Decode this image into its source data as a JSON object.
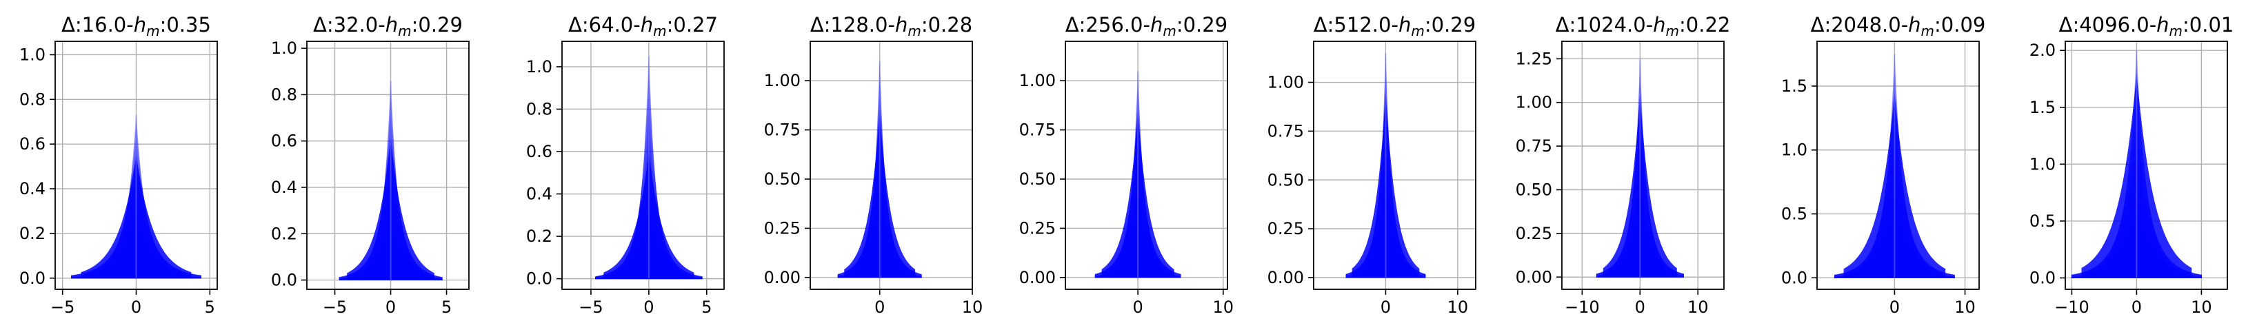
{
  "chart_data": [
    {
      "type": "area",
      "title": "Δ:16.0-hm:0.35",
      "title_prefix": "Δ:16.0-",
      "title_suffix": ":0.35",
      "xlim": [
        -5.5,
        5.5
      ],
      "ylim": [
        -0.05,
        1.06
      ],
      "xticks": [
        -5,
        0,
        5
      ],
      "xtick_labels": [
        "−5",
        "0",
        "5"
      ],
      "yticks": [
        0.0,
        0.2,
        0.4,
        0.6,
        0.8,
        1.0
      ],
      "ytick_labels": [
        "0.0",
        "0.2",
        "0.4",
        "0.6",
        "0.8",
        "1.0"
      ],
      "peak": 0.73,
      "core": 0.55,
      "low": 0.2,
      "width": 4.4,
      "grid": true
    },
    {
      "type": "area",
      "title": "Δ:32.0-hm:0.29",
      "title_prefix": "Δ:32.0-",
      "title_suffix": ":0.29",
      "xlim": [
        -7.5,
        7.0
      ],
      "ylim": [
        -0.04,
        1.03
      ],
      "xticks": [
        -5,
        0,
        5
      ],
      "xtick_labels": [
        "−5",
        "0",
        "5"
      ],
      "yticks": [
        0.0,
        0.2,
        0.4,
        0.6,
        0.8,
        1.0
      ],
      "ytick_labels": [
        "0.0",
        "0.2",
        "0.4",
        "0.6",
        "0.8",
        "1.0"
      ],
      "peak": 0.86,
      "core": 0.62,
      "low": 0.2,
      "width": 4.6,
      "grid": true
    },
    {
      "type": "area",
      "title": "Δ:64.0-hm:0.27",
      "title_prefix": "Δ:64.0-",
      "title_suffix": ":0.27",
      "xlim": [
        -7.5,
        6.5
      ],
      "ylim": [
        -0.05,
        1.12
      ],
      "xticks": [
        -5,
        0,
        5
      ],
      "xtick_labels": [
        "−5",
        "0",
        "5"
      ],
      "yticks": [
        0.0,
        0.2,
        0.4,
        0.6,
        0.8,
        1.0
      ],
      "ytick_labels": [
        "0.0",
        "0.2",
        "0.4",
        "0.6",
        "0.8",
        "1.0"
      ],
      "peak": 1.05,
      "core": 0.6,
      "low": 0.2,
      "width": 4.6,
      "grid": true
    },
    {
      "type": "area",
      "title": "Δ:128.0-hm:0.28",
      "title_prefix": "Δ:128.0-",
      "title_suffix": ":0.28",
      "xlim": [
        -7.5,
        10.0
      ],
      "ylim": [
        -0.06,
        1.2
      ],
      "xticks": [
        0,
        10
      ],
      "xtick_labels": [
        "0",
        "10"
      ],
      "yticks": [
        0.0,
        0.25,
        0.5,
        0.75,
        1.0
      ],
      "ytick_labels": [
        "0.00",
        "0.25",
        "0.50",
        "0.75",
        "1.00"
      ],
      "peak": 1.1,
      "core": 0.85,
      "low": 0.3,
      "width": 4.5,
      "grid": true
    },
    {
      "type": "area",
      "title": "Δ:256.0-hm:0.29",
      "title_prefix": "Δ:256.0-",
      "title_suffix": ":0.29",
      "xlim": [
        -8.5,
        10.5
      ],
      "ylim": [
        -0.06,
        1.2
      ],
      "xticks": [
        0,
        10
      ],
      "xtick_labels": [
        "0",
        "10"
      ],
      "yticks": [
        0.0,
        0.25,
        0.5,
        0.75,
        1.0
      ],
      "ytick_labels": [
        "0.00",
        "0.25",
        "0.50",
        "0.75",
        "1.00"
      ],
      "peak": 1.05,
      "core": 0.85,
      "low": 0.3,
      "width": 5.0,
      "grid": true
    },
    {
      "type": "area",
      "title": "Δ:512.0-hm:0.29",
      "title_prefix": "Δ:512.0-",
      "title_suffix": ":0.29",
      "xlim": [
        -10.0,
        12.5
      ],
      "ylim": [
        -0.06,
        1.21
      ],
      "xticks": [
        0,
        10
      ],
      "xtick_labels": [
        "0",
        "10"
      ],
      "yticks": [
        0.0,
        0.25,
        0.5,
        0.75,
        1.0
      ],
      "ytick_labels": [
        "0.00",
        "0.25",
        "0.50",
        "0.75",
        "1.00"
      ],
      "peak": 1.15,
      "core": 0.95,
      "low": 0.3,
      "width": 5.5,
      "grid": true
    },
    {
      "type": "area",
      "title": "Δ:1024.0-hm:0.22",
      "title_prefix": "Δ:1024.0-",
      "title_suffix": ":0.22",
      "xlim": [
        -13.5,
        14.5
      ],
      "ylim": [
        -0.07,
        1.35
      ],
      "xticks": [
        -10,
        0,
        10
      ],
      "xtick_labels": [
        "−10",
        "0",
        "10"
      ],
      "yticks": [
        0.0,
        0.25,
        0.5,
        0.75,
        1.0,
        1.25
      ],
      "ytick_labels": [
        "0.00",
        "0.25",
        "0.50",
        "0.75",
        "1.00",
        "1.25"
      ],
      "peak": 1.25,
      "core": 1.05,
      "low": 0.3,
      "width": 7.5,
      "grid": true
    },
    {
      "type": "area",
      "title": "Δ:2048.0-hm:0.09",
      "title_prefix": "Δ:2048.0-",
      "title_suffix": ":0.09",
      "xlim": [
        -11.0,
        12.0
      ],
      "ylim": [
        -0.09,
        1.85
      ],
      "xticks": [
        0,
        10
      ],
      "xtick_labels": [
        "0",
        "10"
      ],
      "yticks": [
        0.0,
        0.5,
        1.0,
        1.5
      ],
      "ytick_labels": [
        "0.0",
        "0.5",
        "1.0",
        "1.5"
      ],
      "peak": 1.75,
      "core": 1.45,
      "low": 0.4,
      "width": 8.5,
      "grid": true
    },
    {
      "type": "area",
      "title": "Δ:4096.0-hm:0.01",
      "title_prefix": "Δ:4096.0-",
      "title_suffix": ":0.01",
      "xlim": [
        -11.0,
        14.0
      ],
      "ylim": [
        -0.1,
        2.08
      ],
      "xticks": [
        -10,
        0,
        10
      ],
      "xtick_labels": [
        "−10",
        "0",
        "10"
      ],
      "yticks": [
        0.0,
        0.5,
        1.0,
        1.5,
        2.0
      ],
      "ytick_labels": [
        "0.0",
        "0.5",
        "1.0",
        "1.5",
        "2.0"
      ],
      "peak": 2.0,
      "core": 1.8,
      "low": 0.4,
      "width": 10.0,
      "grid": true
    }
  ],
  "colors": {
    "fill": "#0000ff",
    "grid": "#b0b0b0",
    "axis": "#000000",
    "background": "#ffffff"
  }
}
